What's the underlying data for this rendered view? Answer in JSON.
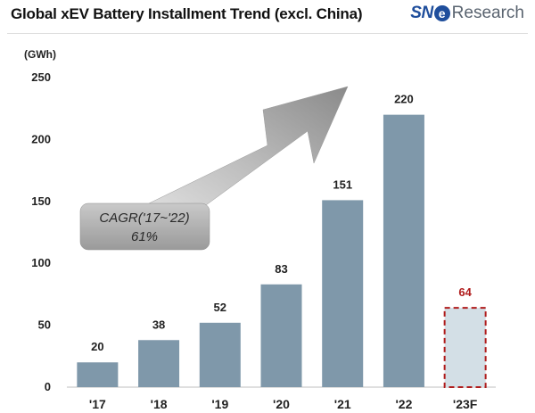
{
  "header": {
    "title": "Global xEV Battery Installment Trend (excl. China)",
    "logo_part1": "SN",
    "logo_part2": "e",
    "logo_part3": "Research"
  },
  "annotation": {
    "line1": "CAGR('17~'22)",
    "line2": "61%"
  },
  "colors": {
    "bar": "#7f98aa",
    "forecast_fill": "#d3dfe6",
    "forecast_border": "#b01c1c",
    "forecast_label": "#b01c1c"
  },
  "chart_data": {
    "type": "bar",
    "title": "Global xEV Battery Installment Trend (excl. China)",
    "ylabel": "(GWh)",
    "xlabel": "",
    "categories": [
      "'17",
      "'18",
      "'19",
      "'20",
      "'21",
      "'22",
      "'23F"
    ],
    "values": [
      20,
      38,
      52,
      83,
      151,
      220,
      64
    ],
    "value_labels": [
      "20",
      "38",
      "52",
      "83",
      "151",
      "220",
      "64"
    ],
    "forecast": [
      false,
      false,
      false,
      false,
      false,
      false,
      true
    ],
    "ylim": [
      0,
      250
    ],
    "yticks": [
      0,
      50,
      100,
      150,
      200,
      250
    ],
    "grid": false
  }
}
